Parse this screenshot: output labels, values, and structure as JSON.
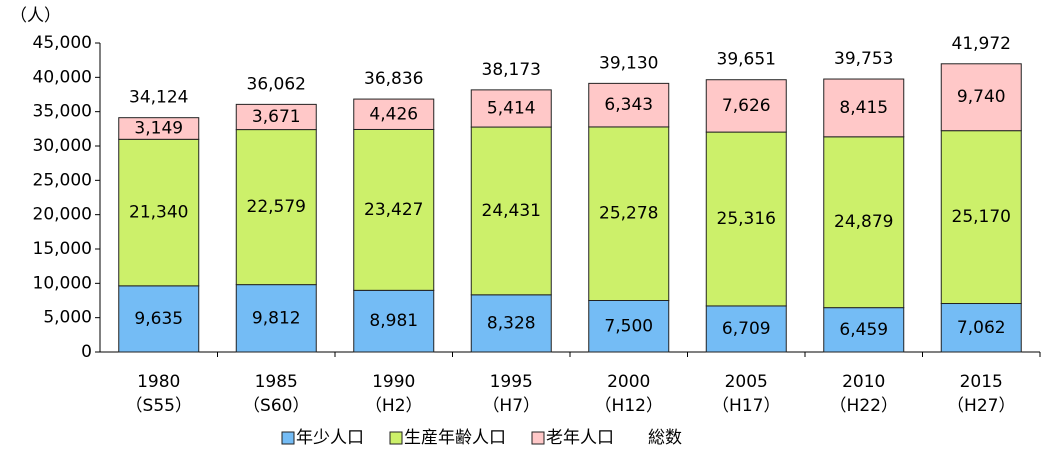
{
  "chart_data": {
    "type": "stacked_bar",
    "y_label": "（人）",
    "categories": [
      [
        "1980",
        "（S55）"
      ],
      [
        "1985",
        "（S60）"
      ],
      [
        "1990",
        "（H2）"
      ],
      [
        "1995",
        "（H7）"
      ],
      [
        "2000",
        "（H12）"
      ],
      [
        "2005",
        "（H17）"
      ],
      [
        "2010",
        "（H22）"
      ],
      [
        "2015",
        "（H27）"
      ]
    ],
    "series": [
      {
        "name": "年少人口",
        "color": "#74bcf5",
        "values": [
          9635,
          9812,
          8981,
          8328,
          7500,
          6709,
          6459,
          7062
        ],
        "value_labels": [
          "9,635",
          "9,812",
          "8,981",
          "8,328",
          "7,500",
          "6,709",
          "6,459",
          "7,062"
        ]
      },
      {
        "name": "生産年齢人口",
        "color": "#ccf06a",
        "values": [
          21340,
          22579,
          23427,
          24431,
          25278,
          25316,
          24879,
          25170
        ],
        "value_labels": [
          "21,340",
          "22,579",
          "23,427",
          "24,431",
          "25,278",
          "25,316",
          "24,879",
          "25,170"
        ]
      },
      {
        "name": "老年人口",
        "color": "#ffc8c8",
        "values": [
          3149,
          3671,
          4426,
          5414,
          6343,
          7626,
          8415,
          9740
        ],
        "value_labels": [
          "3,149",
          "3,671",
          "4,426",
          "5,414",
          "6,343",
          "7,626",
          "8,415",
          "9,740"
        ]
      }
    ],
    "totals": {
      "name": "総数",
      "color": "#2e2ef0",
      "values": [
        34124,
        36062,
        36836,
        38173,
        39130,
        39651,
        39753,
        41972
      ],
      "value_labels": [
        "34,124",
        "36,062",
        "36,836",
        "38,173",
        "39,130",
        "39,651",
        "39,753",
        "41,972"
      ]
    },
    "ylim": [
      0,
      45000
    ],
    "yticks": [
      0,
      {
        "value": 5000,
        "label": "5,000"
      },
      {
        "value": 10000,
        "label": "10,000"
      },
      {
        "value": 15000,
        "label": "15,000"
      },
      {
        "value": 20000,
        "label": "20,000"
      },
      {
        "value": 25000,
        "label": "25,000"
      },
      {
        "value": 30000,
        "label": "30,000"
      },
      {
        "value": 35000,
        "label": "35,000"
      },
      {
        "value": 40000,
        "label": "40,000"
      },
      {
        "value": 45000,
        "label": "45,000"
      }
    ],
    "legend": "bottom"
  }
}
